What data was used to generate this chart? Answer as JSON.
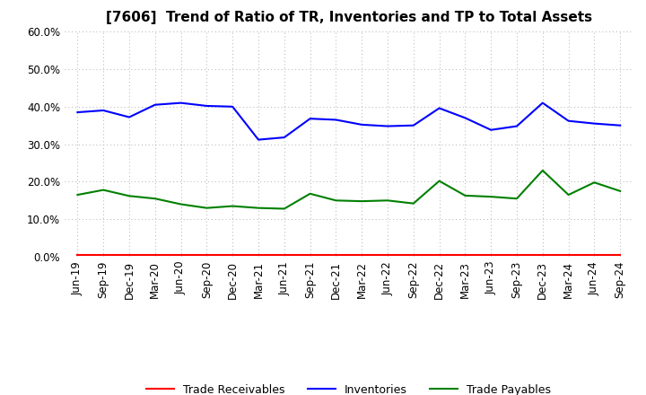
{
  "title": "[7606]  Trend of Ratio of TR, Inventories and TP to Total Assets",
  "x_labels": [
    "Jun-19",
    "Sep-19",
    "Dec-19",
    "Mar-20",
    "Jun-20",
    "Sep-20",
    "Dec-20",
    "Mar-21",
    "Jun-21",
    "Sep-21",
    "Dec-21",
    "Mar-22",
    "Jun-22",
    "Sep-22",
    "Dec-22",
    "Mar-23",
    "Jun-23",
    "Sep-23",
    "Dec-23",
    "Mar-24",
    "Jun-24",
    "Sep-24"
  ],
  "trade_receivables": [
    0.005,
    0.005,
    0.005,
    0.005,
    0.005,
    0.005,
    0.005,
    0.005,
    0.005,
    0.005,
    0.005,
    0.005,
    0.005,
    0.005,
    0.005,
    0.005,
    0.005,
    0.005,
    0.005,
    0.005,
    0.005,
    0.005
  ],
  "inventories": [
    0.385,
    0.39,
    0.372,
    0.405,
    0.41,
    0.402,
    0.4,
    0.312,
    0.318,
    0.368,
    0.365,
    0.352,
    0.348,
    0.35,
    0.396,
    0.37,
    0.338,
    0.348,
    0.41,
    0.362,
    0.355,
    0.35
  ],
  "trade_payables": [
    0.165,
    0.178,
    0.162,
    0.155,
    0.14,
    0.13,
    0.135,
    0.13,
    0.128,
    0.168,
    0.15,
    0.148,
    0.15,
    0.142,
    0.202,
    0.163,
    0.16,
    0.155,
    0.23,
    0.165,
    0.198,
    0.175
  ],
  "tr_color": "#ff0000",
  "inv_color": "#0000ff",
  "tp_color": "#008000",
  "ylim": [
    0.0,
    0.6
  ],
  "yticks": [
    0.0,
    0.1,
    0.2,
    0.3,
    0.4,
    0.5,
    0.6
  ],
  "bg_color": "#ffffff",
  "grid_color": "#b0b0b0",
  "legend_labels": [
    "Trade Receivables",
    "Inventories",
    "Trade Payables"
  ],
  "title_fontsize": 11,
  "tick_fontsize": 8.5,
  "legend_fontsize": 9
}
